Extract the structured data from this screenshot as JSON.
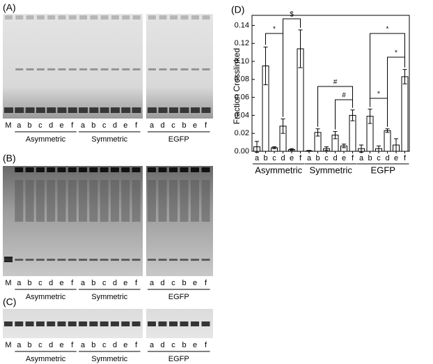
{
  "gels": [
    {
      "label": "(A)",
      "lanes": [
        "M",
        "a",
        "b",
        "c",
        "d",
        "e",
        "f",
        "a",
        "b",
        "c",
        "d",
        "e",
        "f",
        "a",
        "d",
        "c",
        "b",
        "e",
        "f"
      ],
      "groups": [
        "Asymmetric",
        "Symmetric",
        "EGFP"
      ]
    },
    {
      "label": "(B)",
      "lanes": [
        "M",
        "a",
        "b",
        "c",
        "d",
        "e",
        "f",
        "a",
        "b",
        "c",
        "d",
        "e",
        "f",
        "a",
        "d",
        "c",
        "b",
        "e",
        "f"
      ],
      "groups": [
        "Asymmetric",
        "Symmetric",
        "EGFP"
      ]
    },
    {
      "label": "(C)",
      "lanes": [
        "M",
        "a",
        "b",
        "c",
        "d",
        "e",
        "f",
        "a",
        "b",
        "c",
        "d",
        "e",
        "f",
        "a",
        "d",
        "c",
        "b",
        "e",
        "f"
      ],
      "groups": [
        "Asymmetric",
        "Symmetric",
        "EGFP"
      ]
    }
  ],
  "chart_data": {
    "type": "bar",
    "panel_label": "(D)",
    "y_label": "Fraction Crosslinked",
    "categories": [
      "a",
      "b",
      "c",
      "d",
      "e",
      "f",
      "a",
      "b",
      "c",
      "d",
      "e",
      "f",
      "a",
      "b",
      "c",
      "d",
      "e",
      "f"
    ],
    "groups": [
      "Asymmetric",
      "Symmetric",
      "EGFP"
    ],
    "values": [
      0.005,
      0.095,
      0.004,
      0.028,
      0.002,
      0.114,
      0.0005,
      0.021,
      0.003,
      0.018,
      0.006,
      0.04,
      0.003,
      0.039,
      0.003,
      0.023,
      0.007,
      0.083
    ],
    "errors": [
      0.006,
      0.021,
      0.001,
      0.008,
      0.001,
      0.021,
      0.0005,
      0.004,
      0.002,
      0.004,
      0.002,
      0.006,
      0.004,
      0.008,
      0.003,
      0.002,
      0.007,
      0.008
    ],
    "color": "#ffffff",
    "ylim": [
      0,
      0.145
    ],
    "yticks": [
      {
        "value": 0,
        "label": "0.00"
      },
      {
        "value": 0.02,
        "label": "0.02"
      },
      {
        "value": 0.04,
        "label": "0.04"
      },
      {
        "value": 0.06,
        "label": "0.06"
      },
      {
        "value": 0.08,
        "label": "0.08"
      },
      {
        "value": 0.1,
        "label": "0.10"
      },
      {
        "value": 0.12,
        "label": "0.12"
      },
      {
        "value": 0.14,
        "label": "0.14"
      }
    ],
    "annotations": [
      "*",
      "$",
      "#",
      "#",
      "*",
      "*",
      "*"
    ]
  }
}
